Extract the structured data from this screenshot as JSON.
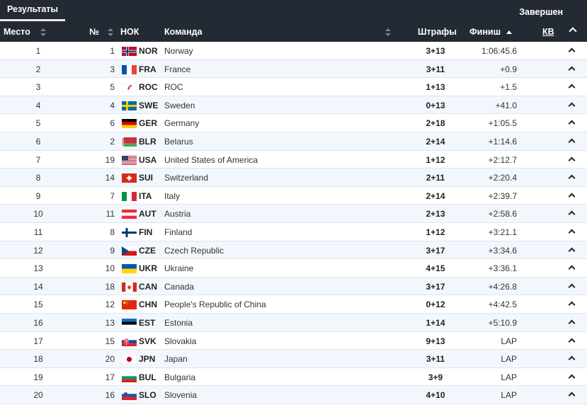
{
  "tab_label": "Результаты",
  "status": "Завершен",
  "columns": {
    "place": "Место",
    "num": "№",
    "noc": "НОК",
    "team": "Команда",
    "penalties": "Штрафы",
    "finish": "Финиш",
    "kv": "КВ"
  },
  "rows": [
    {
      "place": "1",
      "num": "1",
      "noc": "NOR",
      "team": "Norway",
      "penalties": "3+13",
      "finish": "1:06:45.6"
    },
    {
      "place": "2",
      "num": "3",
      "noc": "FRA",
      "team": "France",
      "penalties": "3+11",
      "finish": "+0.9"
    },
    {
      "place": "3",
      "num": "5",
      "noc": "ROC",
      "team": "ROC",
      "penalties": "1+13",
      "finish": "+1.5"
    },
    {
      "place": "4",
      "num": "4",
      "noc": "SWE",
      "team": "Sweden",
      "penalties": "0+13",
      "finish": "+41.0"
    },
    {
      "place": "5",
      "num": "6",
      "noc": "GER",
      "team": "Germany",
      "penalties": "2+18",
      "finish": "+1:05.5"
    },
    {
      "place": "6",
      "num": "2",
      "noc": "BLR",
      "team": "Belarus",
      "penalties": "2+14",
      "finish": "+1:14.6"
    },
    {
      "place": "7",
      "num": "19",
      "noc": "USA",
      "team": "United States of America",
      "penalties": "1+12",
      "finish": "+2:12.7"
    },
    {
      "place": "8",
      "num": "14",
      "noc": "SUI",
      "team": "Switzerland",
      "penalties": "2+11",
      "finish": "+2:20.4"
    },
    {
      "place": "9",
      "num": "7",
      "noc": "ITA",
      "team": "Italy",
      "penalties": "2+14",
      "finish": "+2:39.7"
    },
    {
      "place": "10",
      "num": "11",
      "noc": "AUT",
      "team": "Austria",
      "penalties": "2+13",
      "finish": "+2:58.6"
    },
    {
      "place": "11",
      "num": "8",
      "noc": "FIN",
      "team": "Finland",
      "penalties": "1+12",
      "finish": "+3:21.1"
    },
    {
      "place": "12",
      "num": "9",
      "noc": "CZE",
      "team": "Czech Republic",
      "penalties": "3+17",
      "finish": "+3:34.6"
    },
    {
      "place": "13",
      "num": "10",
      "noc": "UKR",
      "team": "Ukraine",
      "penalties": "4+15",
      "finish": "+3:36.1"
    },
    {
      "place": "14",
      "num": "18",
      "noc": "CAN",
      "team": "Canada",
      "penalties": "3+17",
      "finish": "+4:26.8"
    },
    {
      "place": "15",
      "num": "12",
      "noc": "CHN",
      "team": "People's Republic of China",
      "penalties": "0+12",
      "finish": "+4:42.5"
    },
    {
      "place": "16",
      "num": "13",
      "noc": "EST",
      "team": "Estonia",
      "penalties": "1+14",
      "finish": "+5:10.9"
    },
    {
      "place": "17",
      "num": "15",
      "noc": "SVK",
      "team": "Slovakia",
      "penalties": "9+13",
      "finish": "LAP"
    },
    {
      "place": "18",
      "num": "20",
      "noc": "JPN",
      "team": "Japan",
      "penalties": "3+11",
      "finish": "LAP"
    },
    {
      "place": "19",
      "num": "17",
      "noc": "BUL",
      "team": "Bulgaria",
      "penalties": "3+9",
      "finish": "LAP"
    },
    {
      "place": "20",
      "num": "16",
      "noc": "SLO",
      "team": "Slovenia",
      "penalties": "4+10",
      "finish": "LAP"
    }
  ]
}
